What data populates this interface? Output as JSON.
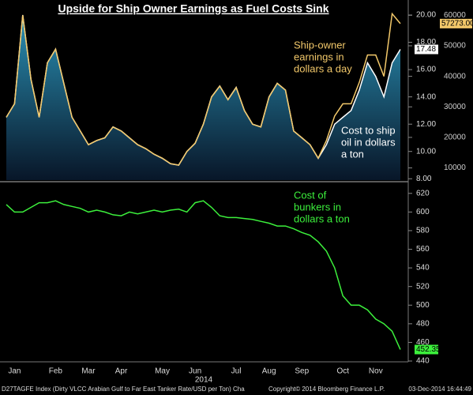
{
  "chart_data": [
    {
      "type": "line",
      "title": "Upside for Ship Owner Earnings as Fuel Costs Sink",
      "ylim": [
        7.9,
        21.1
      ],
      "yticks": [
        {
          "value": 8,
          "label": "8.00"
        },
        {
          "value": 10,
          "label": "10.00"
        },
        {
          "value": 12,
          "label": "12.00"
        },
        {
          "value": 14,
          "label": "14.00"
        },
        {
          "value": 16,
          "label": "16.00"
        },
        {
          "value": 18,
          "label": "18.00"
        },
        {
          "value": 20,
          "label": "20.00"
        }
      ],
      "y2lim": [
        6000,
        65000
      ],
      "y2ticks": [
        10000,
        20000,
        30000,
        40000,
        50000,
        60000
      ],
      "series": [
        {
          "name": "Cost to ship oil in dollars a ton",
          "axis": "y",
          "color": "#ffffff",
          "fill_color": "#2a90b4",
          "last_label": "17.48",
          "values": [
            12.5,
            13.5,
            20.0,
            15.3,
            12.5,
            16.5,
            17.5,
            15.0,
            12.5,
            11.5,
            10.5,
            10.8,
            11.0,
            11.8,
            11.5,
            11.0,
            10.5,
            10.2,
            9.8,
            9.5,
            9.1,
            9.0,
            10.0,
            10.6,
            12.0,
            14.0,
            14.8,
            13.8,
            14.7,
            13.0,
            12.0,
            11.8,
            14.0,
            15.0,
            14.5,
            11.5,
            11.0,
            10.5,
            9.5,
            10.5,
            12.0,
            12.5,
            13.0,
            14.5,
            16.5,
            15.5,
            14.0,
            16.5,
            17.48
          ]
        },
        {
          "name": "Ship-owner earnings in dollars a day",
          "axis": "y2",
          "color": "#f2c86a",
          "last_label": "57273.00",
          "values": [
            26600,
            31000,
            60000,
            39000,
            26600,
            44400,
            48900,
            37700,
            26600,
            22100,
            17600,
            19000,
            19900,
            23400,
            22100,
            19900,
            17600,
            16300,
            14500,
            13200,
            11400,
            10900,
            15400,
            18100,
            24300,
            33200,
            36800,
            32300,
            36300,
            28800,
            24300,
            23400,
            33200,
            37700,
            35500,
            22100,
            19900,
            17600,
            13200,
            19000,
            27000,
            31000,
            31000,
            38000,
            47000,
            47000,
            40000,
            60500,
            57273
          ]
        }
      ],
      "annotations": [
        {
          "lines": [
            "Ship-owner",
            "earnings in",
            "dollars a day"
          ],
          "color": "#f2c86a"
        },
        {
          "lines": [
            "Cost to ship",
            "oil in dollars",
            "a ton"
          ],
          "color": "#ffffff"
        }
      ]
    },
    {
      "type": "line",
      "xlabel": "2014",
      "categories": [
        null,
        "Jan",
        null,
        null,
        null,
        null,
        "Feb",
        null,
        null,
        null,
        "Mar",
        null,
        null,
        null,
        "Apr",
        null,
        null,
        null,
        null,
        "May",
        null,
        null,
        null,
        "Jun",
        null,
        null,
        null,
        null,
        "Jul",
        null,
        null,
        null,
        "Aug",
        null,
        null,
        null,
        "Sep",
        null,
        null,
        null,
        null,
        "Oct",
        null,
        null,
        null,
        "Nov",
        null,
        null,
        null
      ],
      "ylim": [
        440,
        630
      ],
      "yticks": [
        440,
        460,
        480,
        500,
        520,
        540,
        560,
        580,
        600,
        620
      ],
      "series": [
        {
          "name": "Cost of bunkers in dollars a ton",
          "axis": "y",
          "color": "#3cf03c",
          "last_label": "452.35",
          "values": [
            608,
            600,
            600,
            605,
            610,
            610,
            612,
            608,
            606,
            604,
            600,
            602,
            600,
            597,
            596,
            600,
            598,
            600,
            602,
            600,
            602,
            603,
            600,
            610,
            612,
            605,
            596,
            594,
            594,
            593,
            592,
            590,
            588,
            585,
            585,
            582,
            578,
            575,
            568,
            558,
            540,
            510,
            500,
            500,
            495,
            485,
            480,
            472,
            452.35
          ]
        }
      ],
      "annotations": [
        {
          "lines": [
            "Cost of",
            "bunkers in",
            "dollars a ton"
          ],
          "color": "#3cf03c"
        }
      ]
    }
  ],
  "footer": {
    "left": "D27TAGFE Index (Dirty VLCC Arabian Gulf to Far East Tanker Rate/USD per Ton) Cha",
    "center": "Copyright© 2014 Bloomberg Finance L.P.",
    "right": "03-Dec-2014 16:44:49"
  }
}
